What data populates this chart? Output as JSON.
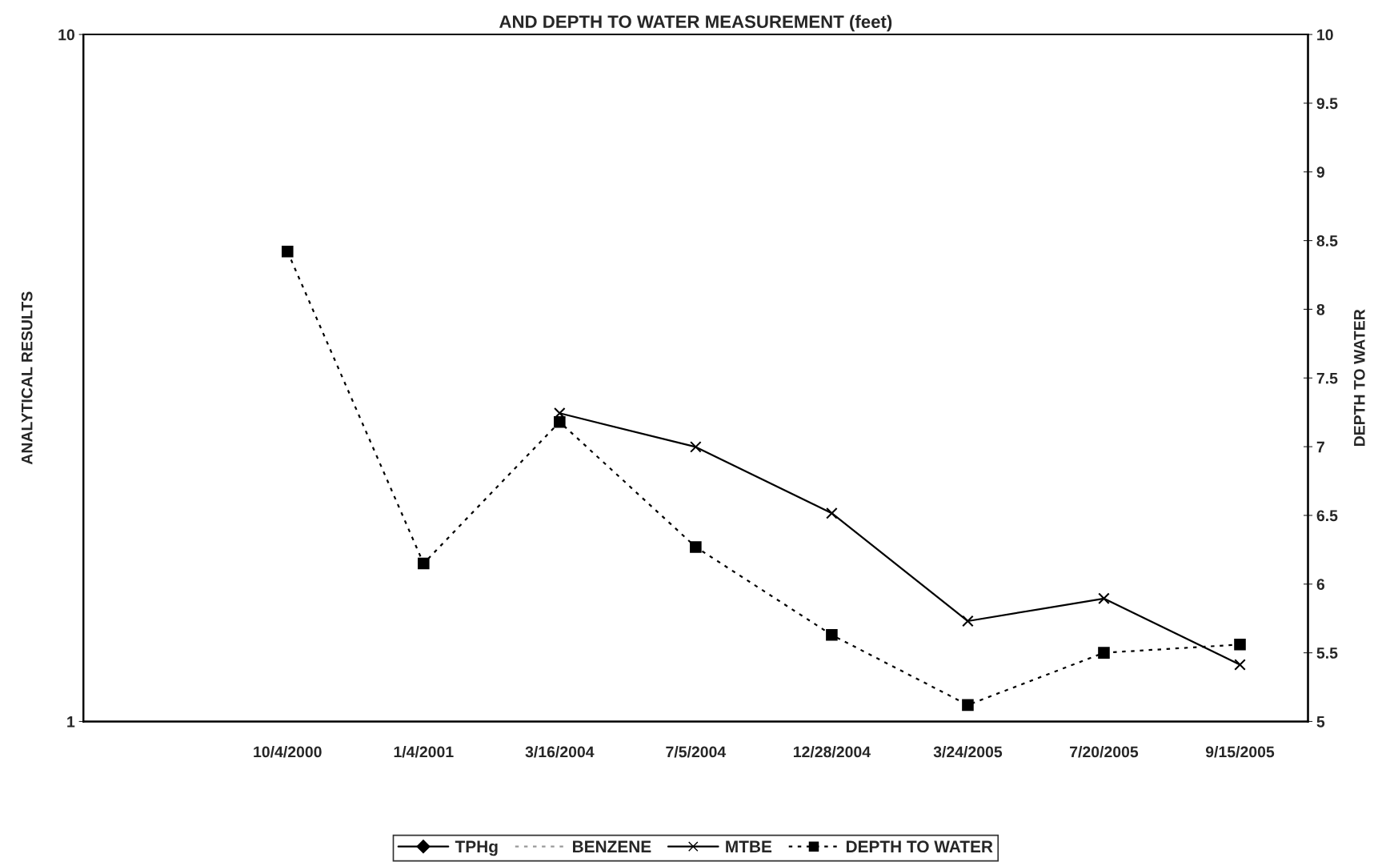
{
  "chart_data": {
    "type": "line",
    "title": "AND DEPTH TO WATER MEASUREMENT (feet)",
    "ylabel": "ANALYTICAL RESULTS",
    "y2label": "DEPTH TO WATER",
    "categories": [
      null,
      "10/4/2000",
      "1/4/2001",
      "3/16/2004",
      "7/5/2004",
      "12/28/2004",
      "3/24/2005",
      "7/20/2005",
      "9/15/2005"
    ],
    "series": [
      {
        "name": "TPHg",
        "color": "#000000",
        "marker": "diamond",
        "line_style": "solid",
        "values": [
          null,
          null,
          null,
          null,
          null,
          null,
          null,
          null,
          null
        ]
      },
      {
        "name": "BENZENE",
        "color": "#999999",
        "marker": "none",
        "line_style": "dotted",
        "values": [
          null,
          null,
          null,
          null,
          null,
          null,
          null,
          null,
          null
        ]
      },
      {
        "name": "MTBE",
        "color": "#000000",
        "marker": "cross",
        "line_style": "solid",
        "values": [
          null,
          null,
          null,
          2.81,
          2.51,
          2.01,
          1.4,
          1.51,
          1.21
        ]
      },
      {
        "name": "DEPTH TO WATER",
        "color": "#000000",
        "marker": "square",
        "line_style": "dotted",
        "axis": "y2",
        "values": [
          null,
          8.42,
          6.15,
          7.18,
          6.27,
          5.63,
          5.12,
          5.5,
          5.56
        ]
      }
    ],
    "log": "y",
    "ylim": [
      1,
      10
    ],
    "yticks": [
      1,
      10
    ],
    "y2lim": [
      5,
      10
    ],
    "y2ticks": [
      5,
      5.5,
      6,
      6.5,
      7,
      7.5,
      8,
      8.5,
      9,
      9.5,
      10
    ],
    "grid": false,
    "legend": "bottom"
  }
}
